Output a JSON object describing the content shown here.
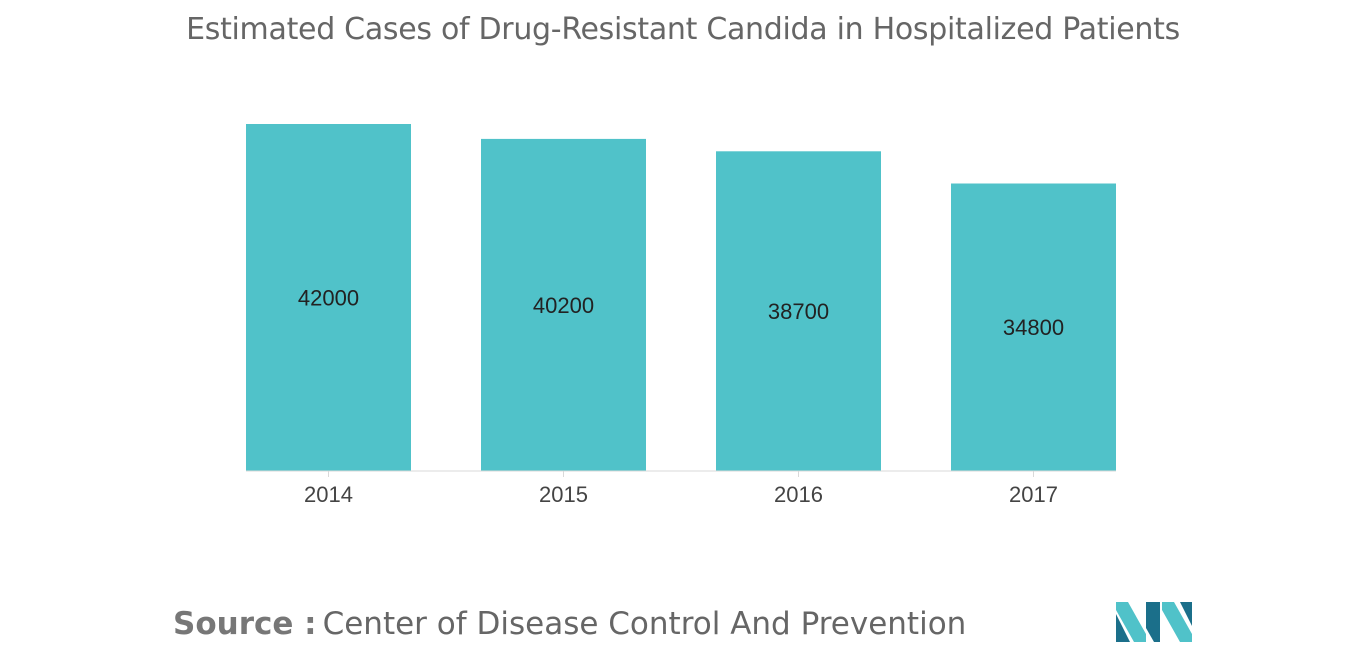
{
  "colors": {
    "bar": "#50c2c9",
    "title": "#666666",
    "logo_dark": "#1b6f8a",
    "logo_light": "#50c2c9"
  },
  "chart_data": {
    "type": "bar",
    "title": "Estimated Cases of Drug-Resistant Candida in Hospitalized Patients",
    "categories": [
      "2014",
      "2015",
      "2016",
      "2017"
    ],
    "values": [
      42000,
      40200,
      38700,
      34800
    ],
    "xlabel": "",
    "ylabel": "",
    "ylim": [
      0,
      42000
    ],
    "grid": false,
    "legend": "none"
  },
  "source": {
    "prefix": "Source :",
    "text": "Center of Disease Control And Prevention"
  },
  "logo": {
    "icon": "mordor-intelligence-logo"
  }
}
